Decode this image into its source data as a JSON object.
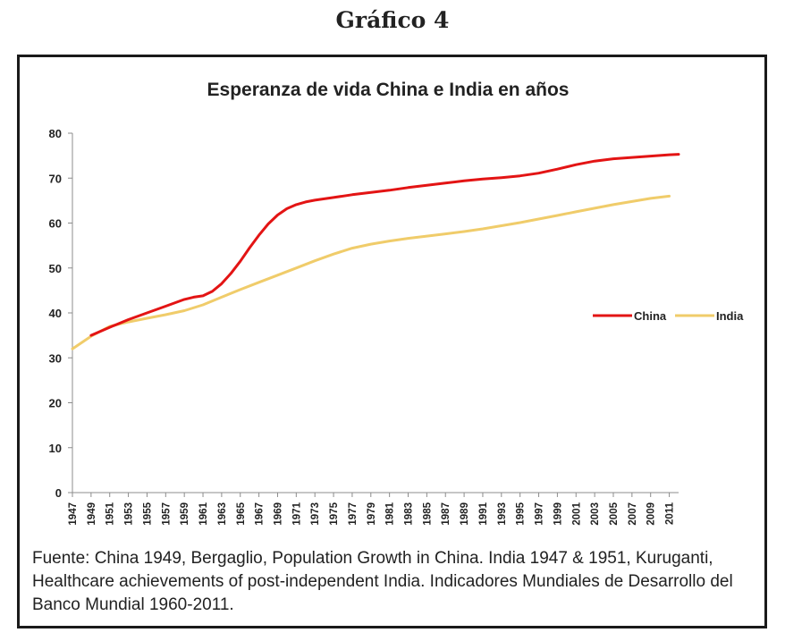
{
  "figure_label": "Gráfico 4",
  "source_note": "Fuente: China 1949, Bergaglio, Population Growth in China. India 1947 & 1951, Kuruganti, Healthcare achievements of post-independent India. Indicadores Mundiales de Desarrollo del Banco Mundial 1960-2011.",
  "colors": {
    "china": "#e31414",
    "india": "#f0cc6a",
    "axis": "#8c8c8c"
  },
  "chart_data": {
    "type": "line",
    "title": "Esperanza de vida China e India en años",
    "xlabel": "",
    "ylabel": "",
    "ylim": [
      0,
      80
    ],
    "yticks": [
      0,
      10,
      20,
      30,
      40,
      50,
      60,
      70,
      80
    ],
    "xlim": [
      1947,
      2012
    ],
    "xticks": [
      "1947",
      "1949",
      "1951",
      "1953",
      "1955",
      "1957",
      "1959",
      "1961",
      "1963",
      "1965",
      "1967",
      "1969",
      "1971",
      "1973",
      "1975",
      "1977",
      "1979",
      "1981",
      "1983",
      "1985",
      "1987",
      "1989",
      "1991",
      "1993",
      "1995",
      "1997",
      "1999",
      "2001",
      "2003",
      "2005",
      "2007",
      "2009",
      "2011"
    ],
    "grid": false,
    "legend": "right",
    "series": [
      {
        "name": "China",
        "x": [
          1949,
          1951,
          1953,
          1955,
          1957,
          1959,
          1960,
          1961,
          1962,
          1963,
          1964,
          1965,
          1966,
          1967,
          1968,
          1969,
          1970,
          1971,
          1972,
          1973,
          1975,
          1977,
          1979,
          1981,
          1983,
          1985,
          1987,
          1989,
          1991,
          1993,
          1995,
          1997,
          1999,
          2001,
          2003,
          2005,
          2007,
          2009,
          2011,
          2012
        ],
        "values": [
          35,
          36.8,
          38.5,
          40,
          41.5,
          43,
          43.5,
          43.8,
          44.8,
          46.5,
          48.8,
          51.5,
          54.5,
          57.3,
          59.8,
          61.8,
          63.2,
          64.1,
          64.7,
          65.1,
          65.7,
          66.3,
          66.8,
          67.3,
          67.9,
          68.4,
          68.9,
          69.4,
          69.8,
          70.1,
          70.5,
          71.1,
          72.0,
          73.0,
          73.8,
          74.3,
          74.6,
          74.9,
          75.2,
          75.3
        ]
      },
      {
        "name": "India",
        "x": [
          1947,
          1949,
          1951,
          1953,
          1955,
          1957,
          1959,
          1961,
          1963,
          1965,
          1967,
          1969,
          1971,
          1973,
          1975,
          1977,
          1979,
          1981,
          1983,
          1985,
          1987,
          1989,
          1991,
          1993,
          1995,
          1997,
          1999,
          2001,
          2003,
          2005,
          2007,
          2009,
          2011
        ],
        "values": [
          32,
          34.8,
          37,
          38,
          38.8,
          39.6,
          40.5,
          41.8,
          43.5,
          45.2,
          46.8,
          48.4,
          50,
          51.6,
          53.1,
          54.4,
          55.3,
          56,
          56.6,
          57.1,
          57.6,
          58.1,
          58.7,
          59.4,
          60.1,
          60.9,
          61.7,
          62.5,
          63.3,
          64.1,
          64.8,
          65.5,
          66
        ]
      }
    ]
  }
}
